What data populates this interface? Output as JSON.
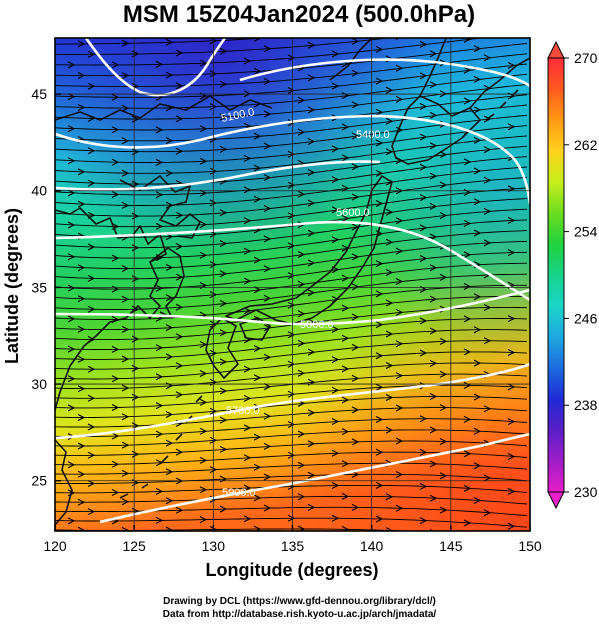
{
  "title": "MSM 15Z04Jan2024 (500.0hPa)",
  "xlabel": "Longitude (degrees)",
  "ylabel": "Latitude  (degrees)",
  "x_ticks": [
    "120",
    "125",
    "130",
    "135",
    "140",
    "145",
    "150"
  ],
  "y_ticks": [
    "25",
    "30",
    "35",
    "40",
    "45"
  ],
  "colorbar": {
    "labels": [
      "270",
      "262",
      "254",
      "246",
      "238",
      "230"
    ],
    "min": 230,
    "max": 270,
    "colors": [
      "#ff2a3a",
      "#ff5a1e",
      "#ff9a14",
      "#ffd21c",
      "#c8ef1c",
      "#6cdc1e",
      "#20d23c",
      "#18d28c",
      "#1cd6c8",
      "#1ea8e0",
      "#1e6ce0",
      "#1e2ad6",
      "#5a1ec8",
      "#a01ec8",
      "#e81ec8"
    ]
  },
  "contour_labels": [
    "5100.0",
    "5400.0",
    "5600.0",
    "5800.0",
    "5700.0",
    "5900.0"
  ],
  "credits": {
    "line1": "Drawing by DCL (https://www.gfd-dennou.org/library/dcl/)",
    "line2": "Data from http://database.rish.kyoto-u.ac.jp/arch/jmadata/"
  }
}
